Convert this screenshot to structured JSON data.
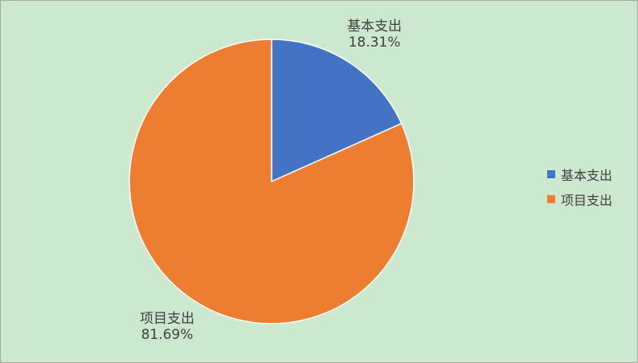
{
  "chart_data": {
    "type": "pie",
    "categories": [
      "基本支出",
      "项目支出"
    ],
    "values": [
      18.31,
      81.69
    ],
    "value_labels": [
      "18.31%",
      "81.69%"
    ],
    "colors": [
      "#4472c4",
      "#ed7d31"
    ],
    "start_angle_deg": 0,
    "direction": "clockwise",
    "legend_position": "right",
    "show_data_labels": true
  }
}
